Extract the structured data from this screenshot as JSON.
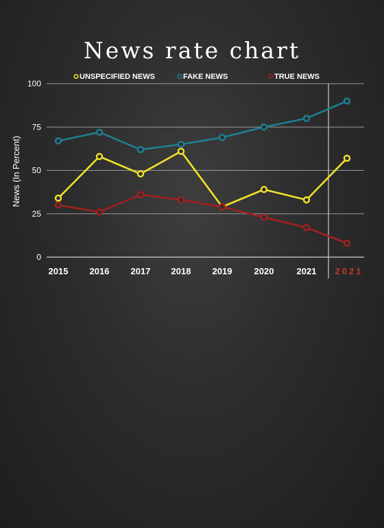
{
  "chart_data": {
    "type": "line",
    "title": "News rate chart",
    "ylabel": "News (In Percent)",
    "xlabel": "",
    "categories": [
      "2015",
      "2016",
      "2017",
      "2018",
      "2019",
      "2020",
      "2021",
      "2021"
    ],
    "highlight_category_index": 7,
    "ylim": [
      0,
      100
    ],
    "yticks": [
      "0",
      "25",
      "50",
      "75",
      "100"
    ],
    "grid": true,
    "legend": "top",
    "series": [
      {
        "name": "UNSPECIFIED NEWS",
        "color": "#f2e22a",
        "values": [
          34,
          58,
          48,
          61,
          29,
          39,
          33,
          57
        ]
      },
      {
        "name": "FAKE NEWS",
        "color": "#1f7f93",
        "values": [
          67,
          72,
          62,
          65,
          69,
          75,
          80,
          90
        ]
      },
      {
        "name": "TRUE NEWS",
        "color": "#a51f1f",
        "values": [
          30,
          26,
          36,
          33,
          29,
          23,
          17,
          8
        ]
      }
    ]
  }
}
